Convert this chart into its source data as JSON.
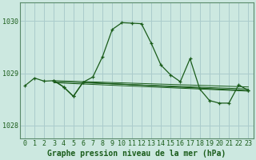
{
  "title": "Graphe pression niveau de la mer (hPa)",
  "background_color": "#cce8e0",
  "grid_color": "#aacccc",
  "line_color": "#1a5c1a",
  "ylim": [
    1027.75,
    1030.35
  ],
  "xlim": [
    -0.5,
    23.5
  ],
  "yticks": [
    1028,
    1029,
    1030
  ],
  "xticks": [
    0,
    1,
    2,
    3,
    4,
    5,
    6,
    7,
    8,
    9,
    10,
    11,
    12,
    13,
    14,
    15,
    16,
    17,
    18,
    19,
    20,
    21,
    22,
    23
  ],
  "series1_x": [
    0,
    1,
    2,
    3,
    4,
    5,
    6,
    7,
    8,
    9,
    10,
    11,
    12,
    13,
    14,
    15,
    16,
    17,
    18,
    19,
    20,
    21,
    22,
    23
  ],
  "series1_y": [
    1028.76,
    1028.91,
    1028.85,
    1028.86,
    1028.74,
    1028.56,
    1028.83,
    1028.93,
    1029.32,
    1029.84,
    1029.97,
    1029.96,
    1029.95,
    1029.58,
    1029.16,
    1028.97,
    1028.84,
    1029.28,
    1028.7,
    1028.48,
    1028.43,
    1028.43,
    1028.78,
    1028.67
  ],
  "series2_x": [
    3,
    4,
    5,
    6,
    23
  ],
  "series2_y": [
    1028.86,
    1028.74,
    1028.56,
    1028.83,
    1028.67
  ],
  "series3_x": [
    3,
    23
  ],
  "series3_y": [
    1028.86,
    1028.74
  ],
  "series4_x": [
    3,
    23
  ],
  "series4_y": [
    1028.84,
    1028.7
  ],
  "series5_x": [
    3,
    23
  ],
  "series5_y": [
    1028.82,
    1028.66
  ],
  "xlabel_fontsize": 7,
  "tick_fontsize": 6,
  "label_color": "#1a5c1a"
}
